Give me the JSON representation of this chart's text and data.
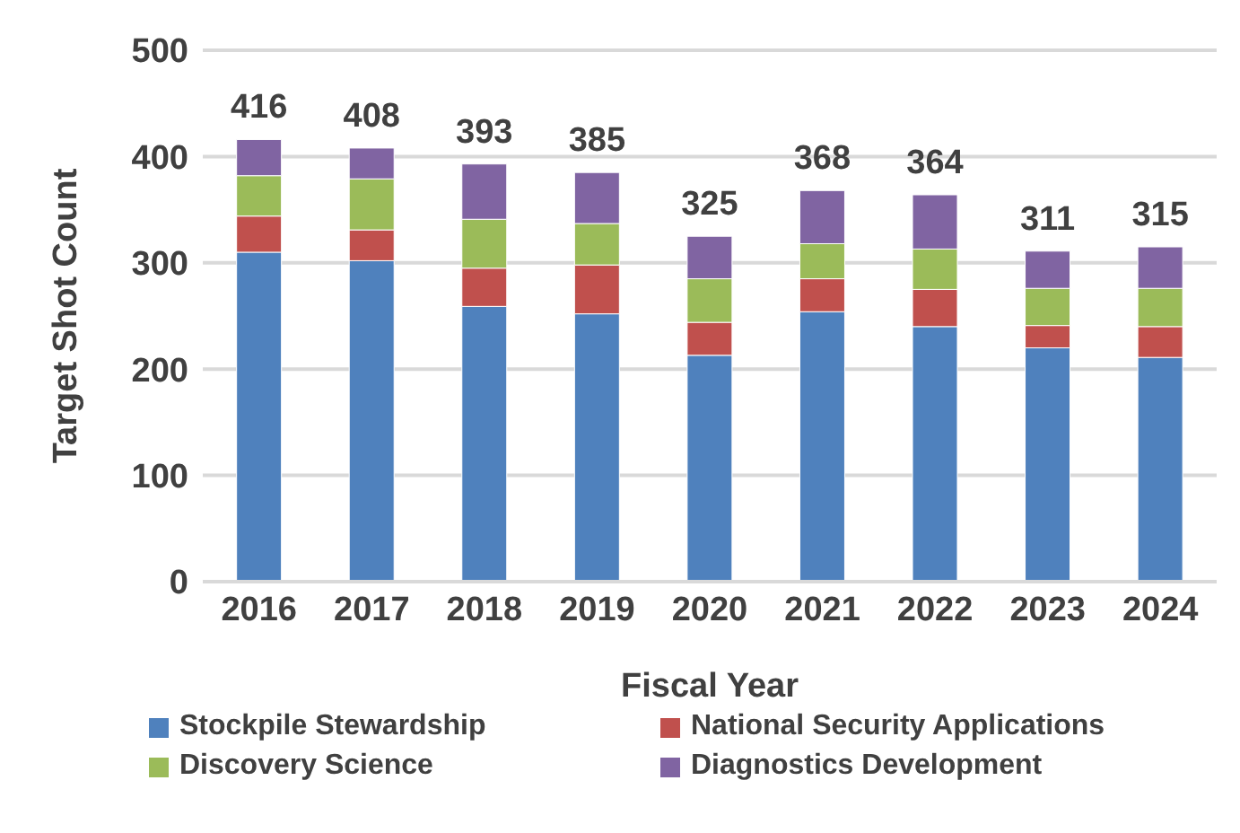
{
  "chart_data": {
    "type": "bar",
    "xlabel": "Fiscal Year",
    "ylabel": "Target Shot Count",
    "categories": [
      "2016",
      "2017",
      "2018",
      "2019",
      "2020",
      "2021",
      "2022",
      "2023",
      "2024"
    ],
    "stacked": true,
    "series": [
      {
        "name": "Stockpile Stewardship",
        "color": "#4f81bd",
        "values": [
          310,
          302,
          259,
          252,
          213,
          254,
          240,
          220,
          211
        ]
      },
      {
        "name": "National Security Applications",
        "color": "#c0504d",
        "values": [
          34,
          29,
          36,
          46,
          31,
          31,
          35,
          21,
          29
        ]
      },
      {
        "name": "Discovery Science",
        "color": "#9bbb59",
        "values": [
          38,
          48,
          46,
          39,
          41,
          33,
          38,
          35,
          36
        ]
      },
      {
        "name": "Diagnostics Development",
        "color": "#8064a2",
        "values": [
          34,
          29,
          52,
          48,
          40,
          50,
          51,
          35,
          39
        ]
      }
    ],
    "totals": [
      "416",
      "408",
      "393",
      "385",
      "325",
      "368",
      "364",
      "311",
      "315"
    ],
    "ylim": [
      0,
      500
    ],
    "yticks": [
      0,
      100,
      200,
      300,
      400,
      500
    ],
    "grid": "y",
    "legend": "bottom"
  }
}
